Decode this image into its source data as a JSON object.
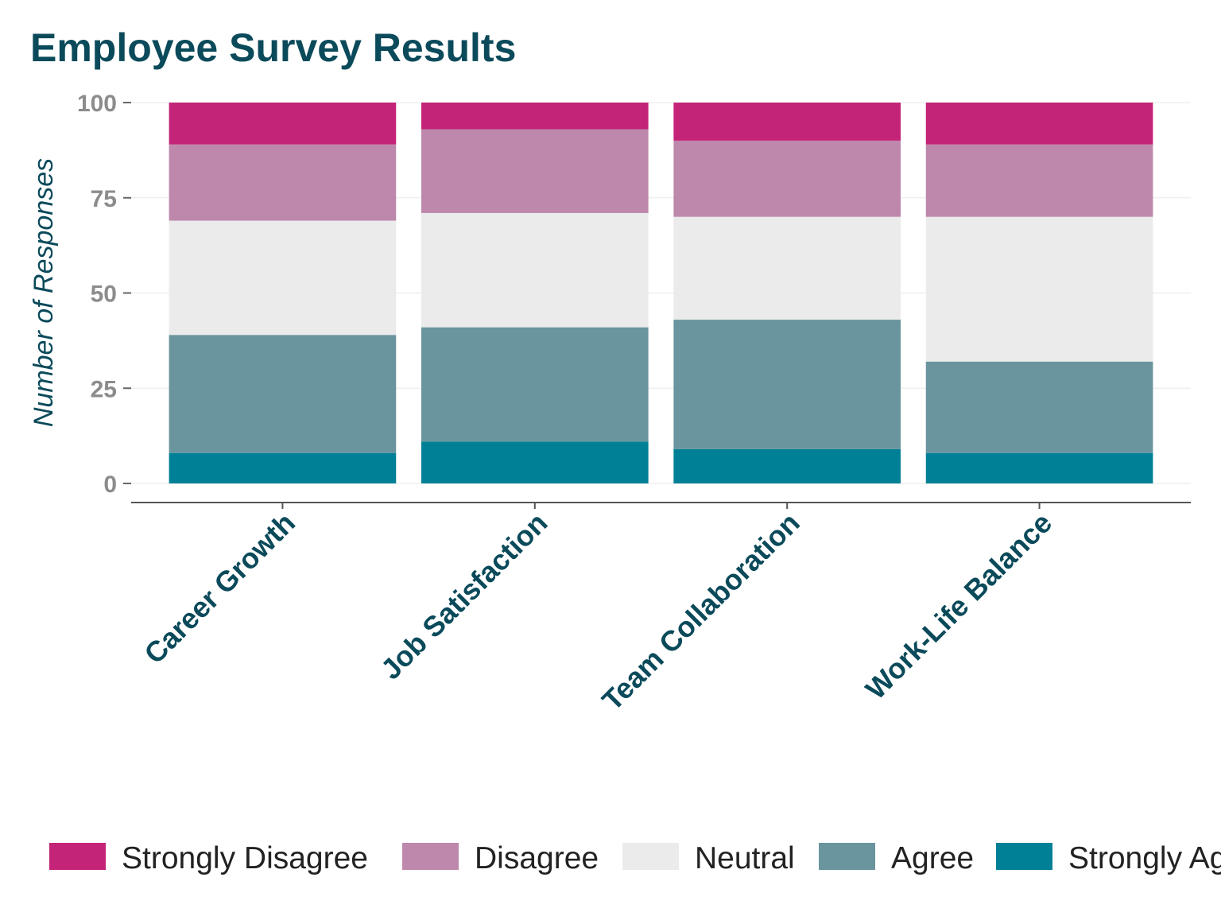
{
  "chart_data": {
    "type": "bar",
    "stacked": true,
    "title": "Employee Survey Results",
    "xlabel": "",
    "ylabel": "Number of Responses",
    "ylim": [
      0,
      100
    ],
    "yticks": [
      "0",
      "25",
      "50",
      "75",
      "100"
    ],
    "grid": true,
    "legend_position": "bottom",
    "categories": [
      "Career Growth",
      "Job Satisfaction",
      "Team Collaboration",
      "Work-Life Balance"
    ],
    "series": [
      {
        "name": "Strongly Agree",
        "color": "#008096",
        "values": [
          8,
          11,
          9,
          8
        ]
      },
      {
        "name": "Agree",
        "color": "#6a959e",
        "values": [
          31,
          30,
          34,
          24
        ]
      },
      {
        "name": "Neutral",
        "color": "#ebebeb",
        "values": [
          30,
          30,
          27,
          38
        ]
      },
      {
        "name": "Disagree",
        "color": "#bd88ab",
        "values": [
          20,
          22,
          20,
          19
        ]
      },
      {
        "name": "Strongly Disagree",
        "color": "#c42478",
        "values": [
          11,
          7,
          10,
          11
        ]
      }
    ],
    "legend_order": [
      "Strongly Disagree",
      "Disagree",
      "Neutral",
      "Agree",
      "Strongly Agree"
    ]
  }
}
